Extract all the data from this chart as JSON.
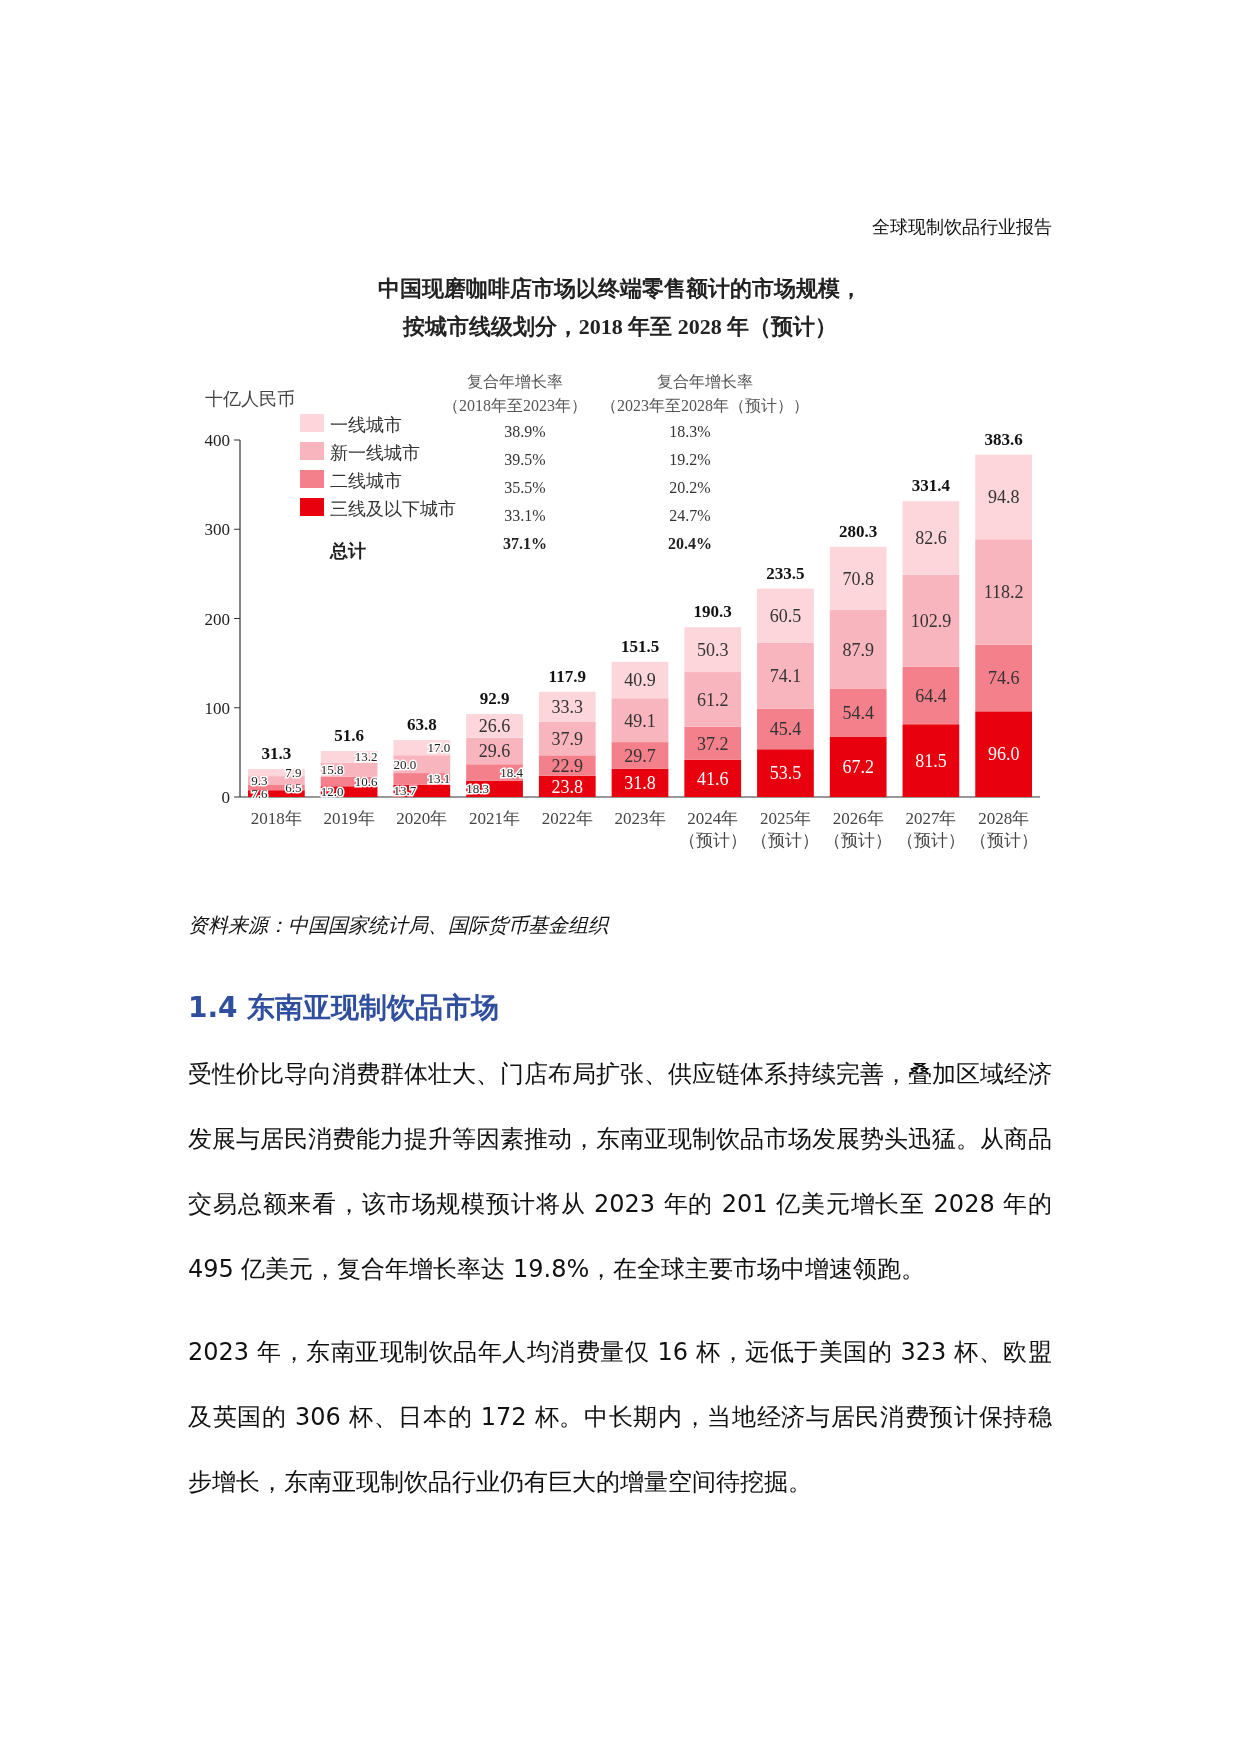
{
  "chart_data": {
    "type": "bar",
    "stacked": true,
    "title": "中国现磨咖啡店市场以终端零售额计的市场规模，按城市线级划分，2018 年至 2028 年（预计）",
    "ylabel": "十亿人民币",
    "categories": [
      "2018年",
      "2019年",
      "2020年",
      "2021年",
      "2022年",
      "2023年",
      "2024年（预计）",
      "2025年（预计）",
      "2026年（预计）",
      "2027年（预计）",
      "2028年（预计）"
    ],
    "series": [
      {
        "name": "三线及以下城市",
        "color": "#e8000f",
        "values": [
          7.6,
          12.0,
          13.7,
          18.3,
          23.8,
          31.8,
          41.6,
          53.5,
          67.2,
          81.5,
          96.0
        ],
        "value_labels": [
          "7.6",
          "12.0",
          "13.7",
          "18.3",
          "23.8",
          "31.8",
          "41.6",
          "53.5",
          "67.2",
          "81.5",
          "96.0"
        ]
      },
      {
        "name": "二线城市",
        "color": "#f4808c",
        "values": [
          6.5,
          10.6,
          13.1,
          18.4,
          22.9,
          29.7,
          37.2,
          45.4,
          54.4,
          64.4,
          74.6
        ],
        "value_labels": [
          "6.5",
          "10.6",
          "13.1",
          "18.4",
          "22.9",
          "29.7",
          "37.2",
          "45.4",
          "54.4",
          "64.4",
          "74.6"
        ]
      },
      {
        "name": "新一线城市",
        "color": "#f9b5be",
        "values": [
          9.3,
          15.8,
          20.0,
          29.6,
          37.9,
          49.1,
          61.2,
          74.1,
          87.9,
          102.9,
          118.2
        ],
        "value_labels": [
          "9.3",
          "15.8",
          "20.0",
          "29.6",
          "37.9",
          "49.1",
          "61.2",
          "74.1",
          "87.9",
          "102.9",
          "118.2"
        ]
      },
      {
        "name": "一线城市",
        "color": "#fdd6db",
        "values": [
          7.9,
          13.2,
          17.0,
          26.6,
          33.3,
          40.9,
          50.3,
          60.5,
          70.8,
          82.6,
          94.8
        ],
        "value_labels": [
          "7.9",
          "13.2",
          "17.0",
          "26.6",
          "33.3",
          "40.9",
          "50.3",
          "60.5",
          "70.8",
          "82.6",
          "94.8"
        ]
      }
    ],
    "totals": [
      "31.3",
      "51.6",
      "63.8",
      "92.9",
      "117.9",
      "151.5",
      "190.3",
      "233.5",
      "280.3",
      "331.4",
      "383.6"
    ],
    "ylim": [
      0,
      400
    ],
    "yticks": [
      0,
      100,
      200,
      300,
      400
    ],
    "legend": "top left",
    "annotations": [
      "全球现制饮品行业报告",
      "复合年增长率（2018年至2023年）",
      "复合年增长率（2023年至2028年（预计））",
      "38.9%",
      "18.3%",
      "39.5%",
      "19.2%",
      "35.5%",
      "20.2%",
      "33.1%",
      "24.7%",
      "总计",
      "37.1%",
      "20.4%",
      "资料来源：中国国家统计局、国际货币基金组织",
      "1.4  东南亚现制饮品市场",
      "受性价比导向消费群体壮大、门店布局扩张、供应链体系持续完善，叠加区域经济发展与居民消费能力提升等因素推动，东南亚现制饮品市场发展势头迅猛。从商品交易总额来看，该市场规模预计将从 2023 年的 201 亿美元增长至 2028 年的 495 亿美元，复合年增长率达 19.8%，在全球主要市场中增速领跑。",
      "2023 年，东南亚现制饮品年人均消费量仅 16 杯，远低于美国的 323 杯、欧盟及英国的 306 杯、日本的 172 杯。中长期内，当地经济与居民消费预计保持稳步增长，东南亚现制饮品行业仍有巨大的增量空间待挖掘。"
    ]
  }
}
